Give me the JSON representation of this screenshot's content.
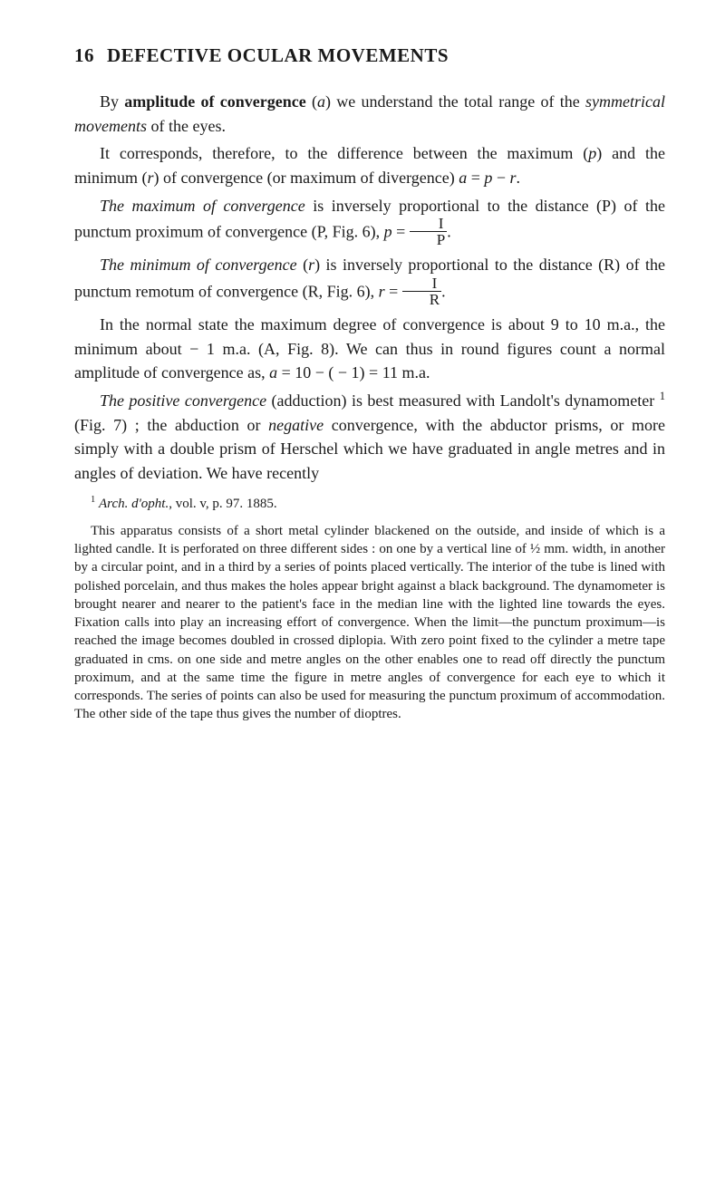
{
  "pageNumber": "16",
  "title": "DEFECTIVE OCULAR MOVEMENTS",
  "para1_a": "By ",
  "para1_bold": "amplitude of convergence",
  "para1_b": " (",
  "para1_ia": "a",
  "para1_c": ") we understand the total range of the ",
  "para1_ib": "symmetrical movements",
  "para1_d": " of the eyes.",
  "para2_a": "It corresponds, therefore, to the difference between the maximum (",
  "para2_ia": "p",
  "para2_b": ") and the minimum (",
  "para2_ib": "r",
  "para2_c": ") of convergence (or maximum of divergence) ",
  "para2_ic": "a",
  "para2_d": " = ",
  "para2_id": "p",
  "para2_e": " − ",
  "para2_ie": "r",
  "para2_f": ".",
  "para3_ia": "The maximum of convergence",
  "para3_a": " is inversely proportional to the distance (P) of the punctum proximum of convergence (P, Fig. 6), ",
  "para3_ib": "p",
  "para3_b": " = ",
  "para3_num": "I",
  "para3_den": "P",
  "para3_c": ".",
  "para4_ia": "The minimum of convergence",
  "para4_a": " (",
  "para4_ib": "r",
  "para4_b": ") is inversely proportional to the distance (R) of the punctum remotum of convergence (R, Fig. 6), ",
  "para4_ic": "r",
  "para4_c": " = ",
  "para4_num": "I",
  "para4_den": "R",
  "para4_d": ".",
  "para5_a": "In the normal state the maximum degree of convergence is about 9 to 10 m.a., the minimum about − 1 m.a. (A, Fig. 8). We can thus in round figures count a normal amplitude of convergence as, ",
  "para5_ia": "a",
  "para5_b": " = 10 − ( − 1) = 11 m.a.",
  "para6_ia": "The positive convergence",
  "para6_a": " (adduction) is best measured with Landolt's dynamometer ",
  "para6_sup": "1",
  "para6_b": " (Fig. 7) ; the abduction or ",
  "para6_ib": "negative",
  "para6_c": " convergence, with the abductor prisms, or more simply with a double prism of Herschel which we have graduated in angle metres and in angles of deviation. We have recently",
  "fn_sup": "1",
  "fn_a": " ",
  "fn_ia": "Arch. d'opht.",
  "fn_b": ", vol. v, p. 97. 1885.",
  "fn2": "This apparatus consists of a short metal cylinder blackened on the outside, and inside of which is a lighted candle. It is perforated on three different sides : on one by a vertical line of ½ mm. width, in another by a circular point, and in a third by a series of points placed vertically. The interior of the tube is lined with polished porcelain, and thus makes the holes appear bright against a black background. The dynamometer is brought nearer and nearer to the patient's face in the median line with the lighted line towards the eyes. Fixation calls into play an increasing effort of convergence. When the limit—the punctum proximum—is reached the image becomes doubled in crossed diplopia. With zero point fixed to the cylinder a metre tape graduated in cms. on one side and metre angles on the other enables one to read off directly the punctum proximum, and at the same time the figure in metre angles of convergence for each eye to which it corresponds. The series of points can also be used for measuring the punctum proximum of accommodation. The other side of the tape thus gives the number of dioptres."
}
